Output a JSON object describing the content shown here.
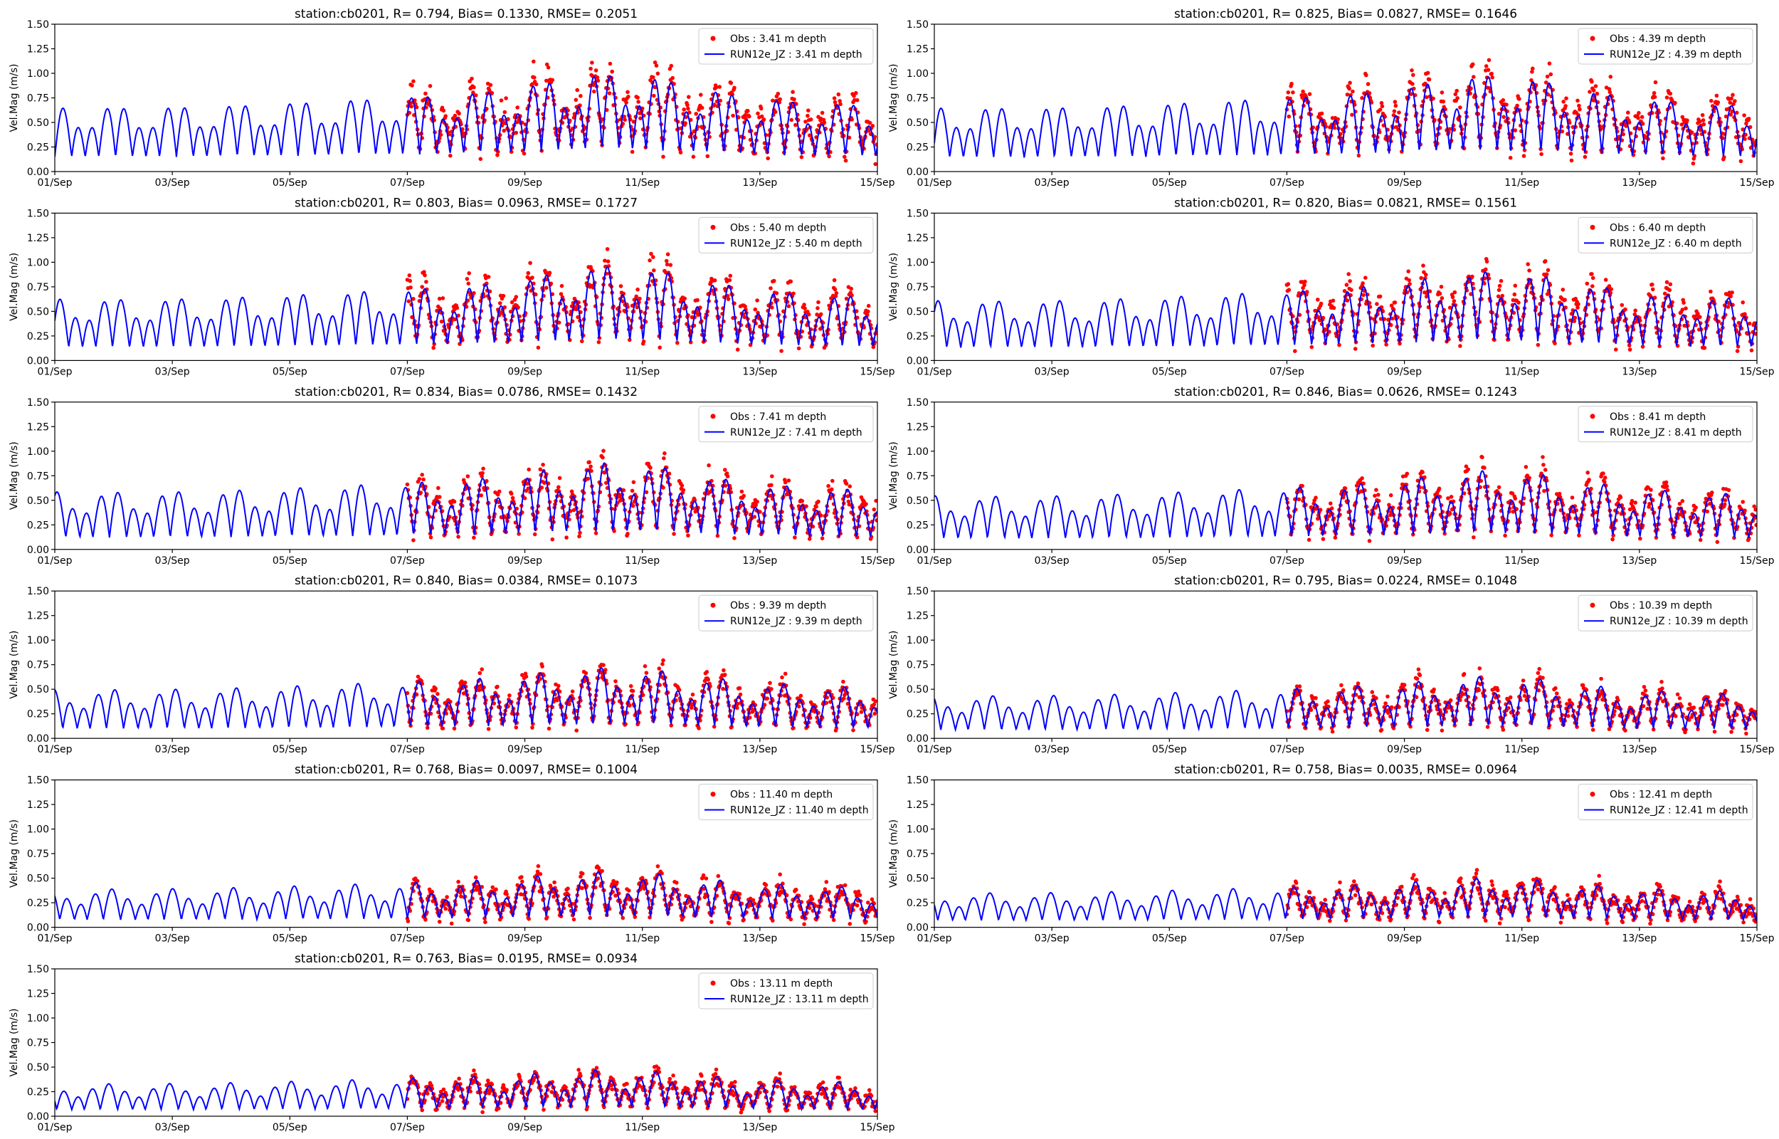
{
  "chart_data": [
    {
      "type": "line",
      "title": "station:cb0201, R= 0.794, Bias= 0.1330, RMSE= 0.2051",
      "ylabel": "Vel.Mag (m/s)",
      "ylim": [
        0,
        1.5
      ],
      "yticks": [
        "0.00",
        "0.25",
        "0.50",
        "0.75",
        "1.00",
        "1.25",
        "1.50"
      ],
      "xlim": [
        "01/Sep",
        "15/Sep"
      ],
      "xticks": [
        "01/Sep",
        "03/Sep",
        "05/Sep",
        "07/Sep",
        "09/Sep",
        "11/Sep",
        "13/Sep",
        "15/Sep"
      ],
      "legend_position": "top-right",
      "series": [
        {
          "name": "Obs : 3.41 m depth",
          "kind": "points",
          "color": "#ff0000",
          "start_day": 6.0
        },
        {
          "name": "RUN12e_JZ : 3.41 m depth",
          "kind": "line",
          "color": "#0000ff"
        }
      ],
      "model": {
        "base": 0.47,
        "amp": 0.3,
        "sprPeak": 0.28,
        "phase": 0.0
      },
      "obs": {
        "bias": 0.03,
        "noise": 0.12,
        "floor": 0.0
      }
    },
    {
      "type": "line",
      "title": "station:cb0201, R= 0.825, Bias= 0.0827, RMSE= 0.1646",
      "ylabel": "Vel.Mag (m/s)",
      "ylim": [
        0,
        1.5
      ],
      "yticks": [
        "0.00",
        "0.25",
        "0.50",
        "0.75",
        "1.00",
        "1.25",
        "1.50"
      ],
      "xlim": [
        "01/Sep",
        "15/Sep"
      ],
      "xticks": [
        "01/Sep",
        "03/Sep",
        "05/Sep",
        "07/Sep",
        "09/Sep",
        "11/Sep",
        "13/Sep",
        "15/Sep"
      ],
      "legend_position": "top-right",
      "series": [
        {
          "name": "Obs : 4.39 m depth",
          "kind": "points",
          "color": "#ff0000",
          "start_day": 6.0
        },
        {
          "name": "RUN12e_JZ : 4.39 m depth",
          "kind": "line",
          "color": "#0000ff"
        }
      ],
      "model": {
        "base": 0.45,
        "amp": 0.3,
        "sprPeak": 0.27,
        "phase": 0.3
      },
      "obs": {
        "bias": 0.03,
        "noise": 0.11,
        "floor": 0.0
      }
    },
    {
      "type": "line",
      "title": "station:cb0201, R= 0.803, Bias= 0.0963, RMSE= 0.1727",
      "ylabel": "Vel.Mag (m/s)",
      "ylim": [
        0,
        1.5
      ],
      "yticks": [
        "0.00",
        "0.25",
        "0.50",
        "0.75",
        "1.00",
        "1.25",
        "1.50"
      ],
      "xlim": [
        "01/Sep",
        "15/Sep"
      ],
      "xticks": [
        "01/Sep",
        "03/Sep",
        "05/Sep",
        "07/Sep",
        "09/Sep",
        "11/Sep",
        "13/Sep",
        "15/Sep"
      ],
      "legend_position": "top-right",
      "series": [
        {
          "name": "Obs : 5.40 m depth",
          "kind": "points",
          "color": "#ff0000",
          "start_day": 6.0
        },
        {
          "name": "RUN12e_JZ : 5.40 m depth",
          "kind": "line",
          "color": "#0000ff"
        }
      ],
      "model": {
        "base": 0.42,
        "amp": 0.29,
        "sprPeak": 0.3,
        "phase": 0.6
      },
      "obs": {
        "bias": 0.02,
        "noise": 0.1,
        "floor": 0.0
      }
    },
    {
      "type": "line",
      "title": "station:cb0201, R= 0.820, Bias= 0.0821, RMSE= 0.1561",
      "ylabel": "Vel.Mag (m/s)",
      "ylim": [
        0,
        1.5
      ],
      "yticks": [
        "0.00",
        "0.25",
        "0.50",
        "0.75",
        "1.00",
        "1.25",
        "1.50"
      ],
      "xlim": [
        "01/Sep",
        "15/Sep"
      ],
      "xticks": [
        "01/Sep",
        "03/Sep",
        "05/Sep",
        "07/Sep",
        "09/Sep",
        "11/Sep",
        "13/Sep",
        "15/Sep"
      ],
      "legend_position": "top-right",
      "series": [
        {
          "name": "Obs : 6.40 m depth",
          "kind": "points",
          "color": "#ff0000",
          "start_day": 6.0
        },
        {
          "name": "RUN12e_JZ : 6.40 m depth",
          "kind": "line",
          "color": "#0000ff"
        }
      ],
      "model": {
        "base": 0.41,
        "amp": 0.28,
        "sprPeak": 0.26,
        "phase": 0.9
      },
      "obs": {
        "bias": 0.02,
        "noise": 0.09,
        "floor": 0.0
      }
    },
    {
      "type": "line",
      "title": "station:cb0201, R= 0.834, Bias= 0.0786, RMSE= 0.1432",
      "ylabel": "Vel.Mag (m/s)",
      "ylim": [
        0,
        1.5
      ],
      "yticks": [
        "0.00",
        "0.25",
        "0.50",
        "0.75",
        "1.00",
        "1.25",
        "1.50"
      ],
      "xlim": [
        "01/Sep",
        "15/Sep"
      ],
      "xticks": [
        "01/Sep",
        "03/Sep",
        "05/Sep",
        "07/Sep",
        "09/Sep",
        "11/Sep",
        "13/Sep",
        "15/Sep"
      ],
      "legend_position": "top-right",
      "series": [
        {
          "name": "Obs : 7.41 m depth",
          "kind": "points",
          "color": "#ff0000",
          "start_day": 6.0
        },
        {
          "name": "RUN12e_JZ : 7.41 m depth",
          "kind": "line",
          "color": "#0000ff"
        }
      ],
      "model": {
        "base": 0.38,
        "amp": 0.27,
        "sprPeak": 0.28,
        "phase": 1.2
      },
      "obs": {
        "bias": 0.01,
        "noise": 0.08,
        "floor": 0.0
      }
    },
    {
      "type": "line",
      "title": "station:cb0201, R= 0.846, Bias= 0.0626, RMSE= 0.1243",
      "ylabel": "Vel.Mag (m/s)",
      "ylim": [
        0,
        1.5
      ],
      "yticks": [
        "0.00",
        "0.25",
        "0.50",
        "0.75",
        "1.00",
        "1.25",
        "1.50"
      ],
      "xlim": [
        "01/Sep",
        "15/Sep"
      ],
      "xticks": [
        "01/Sep",
        "03/Sep",
        "05/Sep",
        "07/Sep",
        "09/Sep",
        "11/Sep",
        "13/Sep",
        "15/Sep"
      ],
      "legend_position": "top-right",
      "series": [
        {
          "name": "Obs : 8.41 m depth",
          "kind": "points",
          "color": "#ff0000",
          "start_day": 6.0
        },
        {
          "name": "RUN12e_JZ : 8.41 m depth",
          "kind": "line",
          "color": "#0000ff"
        }
      ],
      "model": {
        "base": 0.35,
        "amp": 0.25,
        "sprPeak": 0.25,
        "phase": 1.5
      },
      "obs": {
        "bias": 0.01,
        "noise": 0.07,
        "floor": 0.0
      }
    },
    {
      "type": "line",
      "title": "station:cb0201, R= 0.840, Bias= 0.0384, RMSE= 0.1073",
      "ylabel": "Vel.Mag (m/s)",
      "ylim": [
        0,
        1.5
      ],
      "yticks": [
        "0.00",
        "0.25",
        "0.50",
        "0.75",
        "1.00",
        "1.25",
        "1.50"
      ],
      "xlim": [
        "01/Sep",
        "15/Sep"
      ],
      "xticks": [
        "01/Sep",
        "03/Sep",
        "05/Sep",
        "07/Sep",
        "09/Sep",
        "11/Sep",
        "13/Sep",
        "15/Sep"
      ],
      "legend_position": "top-right",
      "series": [
        {
          "name": "Obs : 9.39 m depth",
          "kind": "points",
          "color": "#ff0000",
          "start_day": 6.0
        },
        {
          "name": "RUN12e_JZ : 9.39 m depth",
          "kind": "line",
          "color": "#0000ff"
        }
      ],
      "model": {
        "base": 0.31,
        "amp": 0.23,
        "sprPeak": 0.22,
        "phase": 1.8
      },
      "obs": {
        "bias": 0.0,
        "noise": 0.06,
        "floor": 0.0
      }
    },
    {
      "type": "line",
      "title": "station:cb0201, R= 0.795, Bias= 0.0224, RMSE= 0.1048",
      "ylabel": "Vel.Mag (m/s)",
      "ylim": [
        0,
        1.5
      ],
      "yticks": [
        "0.00",
        "0.25",
        "0.50",
        "0.75",
        "1.00",
        "1.25",
        "1.50"
      ],
      "xlim": [
        "01/Sep",
        "15/Sep"
      ],
      "xticks": [
        "01/Sep",
        "03/Sep",
        "05/Sep",
        "07/Sep",
        "09/Sep",
        "11/Sep",
        "13/Sep",
        "15/Sep"
      ],
      "legend_position": "top-right",
      "series": [
        {
          "name": "Obs : 10.39 m depth",
          "kind": "points",
          "color": "#ff0000",
          "start_day": 6.0
        },
        {
          "name": "RUN12e_JZ : 10.39 m depth",
          "kind": "line",
          "color": "#0000ff"
        }
      ],
      "model": {
        "base": 0.27,
        "amp": 0.2,
        "sprPeak": 0.22,
        "phase": 2.1
      },
      "obs": {
        "bias": 0.0,
        "noise": 0.06,
        "floor": 0.0
      }
    },
    {
      "type": "line",
      "title": "station:cb0201, R= 0.768, Bias= 0.0097, RMSE= 0.1004",
      "ylabel": "Vel.Mag (m/s)",
      "ylim": [
        0,
        1.5
      ],
      "yticks": [
        "0.00",
        "0.25",
        "0.50",
        "0.75",
        "1.00",
        "1.25",
        "1.50"
      ],
      "xlim": [
        "01/Sep",
        "15/Sep"
      ],
      "xticks": [
        "01/Sep",
        "03/Sep",
        "05/Sep",
        "07/Sep",
        "09/Sep",
        "11/Sep",
        "13/Sep",
        "15/Sep"
      ],
      "legend_position": "top-right",
      "series": [
        {
          "name": "Obs : 11.40 m depth",
          "kind": "points",
          "color": "#ff0000",
          "start_day": 6.0
        },
        {
          "name": "RUN12e_JZ : 11.40 m depth",
          "kind": "line",
          "color": "#0000ff"
        }
      ],
      "model": {
        "base": 0.24,
        "amp": 0.18,
        "sprPeak": 0.22,
        "phase": 2.4
      },
      "obs": {
        "bias": 0.0,
        "noise": 0.06,
        "floor": 0.0
      }
    },
    {
      "type": "line",
      "title": "station:cb0201, R= 0.758, Bias= 0.0035, RMSE= 0.0964",
      "ylabel": "Vel.Mag (m/s)",
      "ylim": [
        0,
        1.5
      ],
      "yticks": [
        "0.00",
        "0.25",
        "0.50",
        "0.75",
        "1.00",
        "1.25",
        "1.50"
      ],
      "xlim": [
        "01/Sep",
        "15/Sep"
      ],
      "xticks": [
        "01/Sep",
        "03/Sep",
        "05/Sep",
        "07/Sep",
        "09/Sep",
        "11/Sep",
        "13/Sep",
        "15/Sep"
      ],
      "legend_position": "top-right",
      "series": [
        {
          "name": "Obs : 12.41 m depth",
          "kind": "points",
          "color": "#ff0000",
          "start_day": 6.0
        },
        {
          "name": "RUN12e_JZ : 12.41 m depth",
          "kind": "line",
          "color": "#0000ff"
        }
      ],
      "model": {
        "base": 0.22,
        "amp": 0.16,
        "sprPeak": 0.2,
        "phase": 2.7
      },
      "obs": {
        "bias": 0.0,
        "noise": 0.06,
        "floor": 0.0
      }
    },
    {
      "type": "line",
      "title": "station:cb0201, R= 0.763, Bias= 0.0195, RMSE= 0.0934",
      "ylabel": "Vel.Mag (m/s)",
      "ylim": [
        0,
        1.5
      ],
      "yticks": [
        "0.00",
        "0.25",
        "0.50",
        "0.75",
        "1.00",
        "1.25",
        "1.50"
      ],
      "xlim": [
        "01/Sep",
        "15/Sep"
      ],
      "xticks": [
        "01/Sep",
        "03/Sep",
        "05/Sep",
        "07/Sep",
        "09/Sep",
        "11/Sep",
        "13/Sep",
        "15/Sep"
      ],
      "legend_position": "top-right",
      "series": [
        {
          "name": "Obs : 13.11 m depth",
          "kind": "points",
          "color": "#ff0000",
          "start_day": 6.0
        },
        {
          "name": "RUN12e_JZ : 13.11 m depth",
          "kind": "line",
          "color": "#0000ff"
        }
      ],
      "model": {
        "base": 0.21,
        "amp": 0.15,
        "sprPeak": 0.2,
        "phase": 3.0
      },
      "obs": {
        "bias": 0.0,
        "noise": 0.05,
        "floor": 0.0
      }
    }
  ]
}
